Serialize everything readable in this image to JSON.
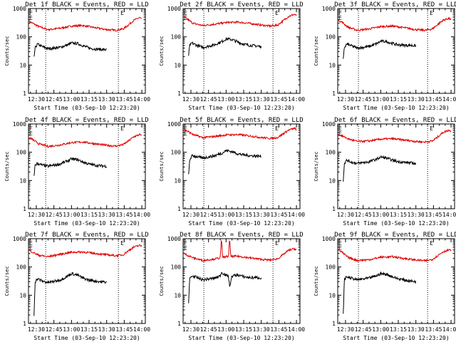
{
  "figure": {
    "colors": {
      "events": "#000000",
      "lld": "#e00000",
      "axis": "#000000",
      "background": "#ffffff"
    }
  },
  "chart_data": [
    {
      "type": "line",
      "title": "Det 1f BLACK = Events, RED = LLD",
      "xlabel": "Start Time (03-Sep-10 12:23:20)",
      "ylabel": "Counts/sec",
      "y_scale": "log",
      "xlim": [
        "12:23:20",
        "14:03:00"
      ],
      "ylim": [
        1,
        1000
      ],
      "x_ticks": [
        "12:30",
        "12:45",
        "13:00",
        "13:15",
        "13:30",
        "13:45",
        "14:00"
      ],
      "y_ticks": [
        "1",
        "10",
        "100",
        "1000"
      ],
      "markers": [
        "F",
        "E",
        "E"
      ],
      "vlines": [
        "12:38",
        "13:40"
      ],
      "series": [
        {
          "color": "#e00000",
          "x": [
            "12:24",
            "12:27",
            "12:32",
            "12:40",
            "12:50",
            "13:00",
            "13:10",
            "13:20",
            "13:30",
            "13:38",
            "13:44",
            "13:48",
            "13:53",
            "13:58",
            "14:00"
          ],
          "values": [
            350,
            300,
            230,
            180,
            200,
            240,
            250,
            210,
            180,
            170,
            190,
            250,
            380,
            480,
            420
          ]
        },
        {
          "color": "#000000",
          "x": [
            "12:28",
            "12:29",
            "12:31",
            "12:35",
            "12:40",
            "12:50",
            "12:57",
            "13:00",
            "13:05",
            "13:10",
            "13:15",
            "13:20",
            "13:25",
            "13:30"
          ],
          "values": [
            18,
            40,
            55,
            45,
            38,
            42,
            52,
            60,
            58,
            48,
            40,
            37,
            36,
            35
          ]
        }
      ]
    },
    {
      "type": "line",
      "title": "Det 2f BLACK = Events, RED = LLD",
      "xlabel": "Start Time (03-Sep-10 12:23:20)",
      "ylabel": "Counts/sec",
      "y_scale": "log",
      "xlim": [
        "12:23:20",
        "14:03:00"
      ],
      "ylim": [
        1,
        1000
      ],
      "x_ticks": [
        "12:30",
        "12:45",
        "13:00",
        "13:15",
        "13:30",
        "13:45",
        "14:00"
      ],
      "y_ticks": [
        "1",
        "10",
        "100",
        "1000"
      ],
      "markers": [
        "E",
        "E",
        "E"
      ],
      "vlines": [
        "12:41",
        "13:40"
      ],
      "series": [
        {
          "color": "#e00000",
          "x": [
            "12:24",
            "12:27",
            "12:32",
            "12:40",
            "12:50",
            "13:00",
            "13:10",
            "13:20",
            "13:30",
            "13:38",
            "13:44",
            "13:48",
            "13:53",
            "13:58",
            "14:00"
          ],
          "values": [
            500,
            420,
            300,
            250,
            280,
            320,
            330,
            300,
            260,
            240,
            260,
            350,
            520,
            620,
            560
          ]
        },
        {
          "color": "#000000",
          "x": [
            "12:28",
            "12:29",
            "12:31",
            "12:35",
            "12:40",
            "12:50",
            "12:57",
            "13:00",
            "13:05",
            "13:10",
            "13:15",
            "13:20",
            "13:25",
            "13:30"
          ],
          "values": [
            22,
            50,
            60,
            50,
            42,
            52,
            70,
            85,
            80,
            65,
            55,
            50,
            48,
            45
          ]
        }
      ]
    },
    {
      "type": "line",
      "title": "Det 3f BLACK = Events, RED = LLD",
      "xlabel": "Start Time (03-Sep-10 12:23:20)",
      "ylabel": "Counts/sec",
      "y_scale": "log",
      "xlim": [
        "12:23:20",
        "14:03:00"
      ],
      "ylim": [
        1,
        1000
      ],
      "x_ticks": [
        "12:30",
        "12:45",
        "13:00",
        "13:15",
        "13:30",
        "13:45",
        "14:00"
      ],
      "y_ticks": [
        "1",
        "10",
        "100",
        "1000"
      ],
      "markers": [
        "F",
        "E",
        "E"
      ],
      "vlines": [
        "12:41",
        "13:40"
      ],
      "series": [
        {
          "color": "#e00000",
          "x": [
            "12:24",
            "12:27",
            "12:32",
            "12:40",
            "12:50",
            "13:00",
            "13:10",
            "13:20",
            "13:30",
            "13:38",
            "13:44",
            "13:48",
            "13:53",
            "13:58",
            "14:00"
          ],
          "values": [
            380,
            330,
            220,
            170,
            190,
            230,
            240,
            210,
            180,
            170,
            190,
            260,
            380,
            450,
            400
          ]
        },
        {
          "color": "#000000",
          "x": [
            "12:28",
            "12:29",
            "12:31",
            "12:35",
            "12:40",
            "12:50",
            "12:57",
            "13:00",
            "13:05",
            "13:10",
            "13:15",
            "13:20",
            "13:25",
            "13:30"
          ],
          "values": [
            15,
            42,
            55,
            48,
            40,
            45,
            58,
            70,
            68,
            58,
            52,
            50,
            50,
            48
          ]
        }
      ]
    },
    {
      "type": "line",
      "title": "Det 4f BLACK = Events, RED = LLD",
      "xlabel": "Start Time (03-Sep-10 12:23:20)",
      "ylabel": "Counts/sec",
      "y_scale": "log",
      "xlim": [
        "12:23:20",
        "14:03:00"
      ],
      "ylim": [
        1,
        1000
      ],
      "x_ticks": [
        "12:30",
        "12:45",
        "13:00",
        "13:15",
        "13:30",
        "13:45",
        "14:00"
      ],
      "y_ticks": [
        "1",
        "10",
        "100",
        "1000"
      ],
      "markers": [
        "F",
        "E",
        "E"
      ],
      "vlines": [
        "12:38",
        "13:40"
      ],
      "series": [
        {
          "color": "#e00000",
          "x": [
            "12:24",
            "12:27",
            "12:32",
            "12:40",
            "12:50",
            "13:00",
            "13:10",
            "13:20",
            "13:30",
            "13:38",
            "13:44",
            "13:48",
            "13:53",
            "13:58",
            "14:00"
          ],
          "values": [
            330,
            280,
            200,
            160,
            180,
            220,
            230,
            200,
            175,
            165,
            185,
            240,
            350,
            420,
            380
          ]
        },
        {
          "color": "#000000",
          "x": [
            "12:28",
            "12:29",
            "12:31",
            "12:35",
            "12:40",
            "12:50",
            "12:57",
            "13:00",
            "13:05",
            "13:10",
            "13:15",
            "13:20",
            "13:25",
            "13:30"
          ],
          "values": [
            15,
            35,
            40,
            35,
            32,
            38,
            50,
            58,
            55,
            45,
            38,
            35,
            33,
            32
          ]
        }
      ]
    },
    {
      "type": "line",
      "title": "Det 5f BLACK = Events, RED = LLD",
      "xlabel": "Start Time (03-Sep-10 12:23:20)",
      "ylabel": "Counts/sec",
      "y_scale": "log",
      "xlim": [
        "12:23:20",
        "14:03:00"
      ],
      "ylim": [
        1,
        1000
      ],
      "x_ticks": [
        "12:30",
        "12:45",
        "13:00",
        "13:15",
        "13:30",
        "13:45",
        "14:00"
      ],
      "y_ticks": [
        "1",
        "10",
        "100",
        "1000"
      ],
      "markers": [
        "E",
        "E",
        "E"
      ],
      "vlines": [
        "12:41",
        "13:40"
      ],
      "series": [
        {
          "color": "#e00000",
          "x": [
            "12:24",
            "12:27",
            "12:32",
            "12:40",
            "12:50",
            "13:00",
            "13:10",
            "13:20",
            "13:30",
            "13:38",
            "13:44",
            "13:48",
            "13:53",
            "13:58",
            "14:00"
          ],
          "values": [
            620,
            560,
            420,
            330,
            360,
            410,
            420,
            380,
            330,
            310,
            330,
            430,
            600,
            700,
            650
          ]
        },
        {
          "color": "#000000",
          "x": [
            "12:28",
            "12:29",
            "12:31",
            "12:35",
            "12:40",
            "12:50",
            "12:57",
            "13:00",
            "13:05",
            "13:10",
            "13:15",
            "13:20",
            "13:25",
            "13:30"
          ],
          "values": [
            15,
            55,
            75,
            70,
            62,
            75,
            95,
            115,
            105,
            88,
            80,
            76,
            74,
            72
          ]
        }
      ]
    },
    {
      "type": "line",
      "title": "Det 6f BLACK = Events, RED = LLD",
      "xlabel": "Start Time (03-Sep-10 12:23:20)",
      "ylabel": "Counts/sec",
      "y_scale": "log",
      "xlim": [
        "12:23:20",
        "14:03:00"
      ],
      "ylim": [
        1,
        1000
      ],
      "x_ticks": [
        "12:30",
        "12:45",
        "13:00",
        "13:15",
        "13:30",
        "13:45",
        "14:00"
      ],
      "y_ticks": [
        "1",
        "10",
        "100",
        "1000"
      ],
      "markers": [
        "E",
        "E",
        "E"
      ],
      "vlines": [
        "12:41",
        "13:40"
      ],
      "series": [
        {
          "color": "#e00000",
          "x": [
            "12:24",
            "12:27",
            "12:32",
            "12:40",
            "12:50",
            "13:00",
            "13:10",
            "13:20",
            "13:30",
            "13:38",
            "13:44",
            "13:48",
            "13:53",
            "13:58",
            "14:00"
          ],
          "values": [
            430,
            380,
            300,
            240,
            250,
            290,
            300,
            270,
            240,
            230,
            250,
            330,
            500,
            600,
            560
          ]
        },
        {
          "color": "#000000",
          "x": [
            "12:28",
            "12:29",
            "12:31",
            "12:35",
            "12:40",
            "12:50",
            "12:57",
            "13:00",
            "13:05",
            "13:10",
            "13:15",
            "13:20",
            "13:25",
            "13:30"
          ],
          "values": [
            10,
            40,
            52,
            45,
            40,
            46,
            58,
            68,
            62,
            52,
            46,
            44,
            42,
            40
          ]
        }
      ]
    },
    {
      "type": "line",
      "title": "Det 7f BLACK = Events, RED = LLD",
      "xlabel": "Start Time (03-Sep-10 12:23:20)",
      "ylabel": "Counts/sec",
      "y_scale": "log",
      "xlim": [
        "12:23:20",
        "14:03:00"
      ],
      "ylim": [
        1,
        1000
      ],
      "x_ticks": [
        "12:30",
        "12:45",
        "13:00",
        "13:15",
        "13:30",
        "13:45",
        "14:00"
      ],
      "y_ticks": [
        "1",
        "10",
        "100",
        "1000"
      ],
      "markers": [
        "E",
        "E",
        "E"
      ],
      "vlines": [
        "12:38",
        "13:40"
      ],
      "series": [
        {
          "color": "#e00000",
          "x": [
            "12:24",
            "12:27",
            "12:32",
            "12:40",
            "12:50",
            "13:00",
            "13:10",
            "13:20",
            "13:30",
            "13:38",
            "13:44",
            "13:48",
            "13:53",
            "13:58",
            "14:00"
          ],
          "values": [
            380,
            330,
            260,
            230,
            280,
            330,
            340,
            300,
            270,
            250,
            270,
            360,
            500,
            580,
            540
          ]
        },
        {
          "color": "#000000",
          "x": [
            "12:28",
            "12:29",
            "12:31",
            "12:35",
            "12:40",
            "12:50",
            "12:57",
            "13:00",
            "13:05",
            "13:10",
            "13:15",
            "13:20",
            "13:25",
            "13:30"
          ],
          "values": [
            2,
            30,
            38,
            32,
            28,
            34,
            48,
            58,
            52,
            40,
            34,
            32,
            30,
            29
          ]
        }
      ]
    },
    {
      "type": "line",
      "title": "Det 8f BLACK = Events, RED = LLD",
      "xlabel": "Start Time (03-Sep-10 12:23:20)",
      "ylabel": "Counts/sec",
      "y_scale": "log",
      "xlim": [
        "12:23:20",
        "14:03:00"
      ],
      "ylim": [
        1,
        1000
      ],
      "x_ticks": [
        "12:30",
        "12:45",
        "13:00",
        "13:15",
        "13:30",
        "13:45",
        "14:00"
      ],
      "y_ticks": [
        "1",
        "10",
        "100",
        "1000"
      ],
      "markers": [
        "F",
        "E",
        "E"
      ],
      "vlines": [
        "12:41",
        "13:40"
      ],
      "series": [
        {
          "color": "#e00000",
          "x": [
            "12:24",
            "12:27",
            "12:32",
            "12:40",
            "12:50",
            "12:55",
            "12:56",
            "12:57",
            "13:00",
            "13:02",
            "13:03",
            "13:04",
            "13:10",
            "13:20",
            "13:30",
            "13:38",
            "13:44",
            "13:48",
            "13:53",
            "13:58",
            "14:00"
          ],
          "values": [
            300,
            260,
            210,
            170,
            190,
            210,
            1000,
            220,
            230,
            235,
            1000,
            235,
            240,
            210,
            185,
            175,
            195,
            260,
            380,
            440,
            410
          ]
        },
        {
          "color": "#000000",
          "x": [
            "12:28",
            "12:29",
            "12:31",
            "12:35",
            "12:40",
            "12:50",
            "12:55",
            "12:56",
            "13:00",
            "13:02",
            "13:03",
            "13:05",
            "13:10",
            "13:15",
            "13:20",
            "13:25",
            "13:30"
          ],
          "values": [
            5,
            40,
            48,
            42,
            35,
            40,
            48,
            65,
            50,
            48,
            20,
            48,
            52,
            45,
            42,
            42,
            41
          ]
        }
      ]
    },
    {
      "type": "line",
      "title": "Det 9f BLACK = Events, RED = LLD",
      "xlabel": "Start Time (03-Sep-10 12:23:20)",
      "ylabel": "Counts/sec",
      "y_scale": "log",
      "xlim": [
        "12:23:20",
        "14:03:00"
      ],
      "ylim": [
        1,
        1000
      ],
      "x_ticks": [
        "12:30",
        "12:45",
        "13:00",
        "13:15",
        "13:30",
        "13:45",
        "14:00"
      ],
      "y_ticks": [
        "1",
        "10",
        "100",
        "1000"
      ],
      "markers": [
        "E",
        "E",
        "E"
      ],
      "vlines": [
        "12:41",
        "13:40"
      ],
      "series": [
        {
          "color": "#e00000",
          "x": [
            "12:24",
            "12:27",
            "12:32",
            "12:40",
            "12:50",
            "13:00",
            "13:10",
            "13:20",
            "13:30",
            "13:38",
            "13:44",
            "13:48",
            "13:53",
            "13:58",
            "14:00"
          ],
          "values": [
            400,
            330,
            220,
            170,
            180,
            220,
            230,
            200,
            175,
            165,
            185,
            240,
            340,
            400,
            380
          ]
        },
        {
          "color": "#000000",
          "x": [
            "12:28",
            "12:29",
            "12:31",
            "12:35",
            "12:40",
            "12:50",
            "12:57",
            "13:00",
            "13:05",
            "13:10",
            "13:15",
            "13:20",
            "13:25",
            "13:30"
          ],
          "values": [
            2,
            35,
            45,
            40,
            35,
            40,
            50,
            58,
            55,
            45,
            38,
            35,
            32,
            30
          ]
        }
      ]
    }
  ]
}
